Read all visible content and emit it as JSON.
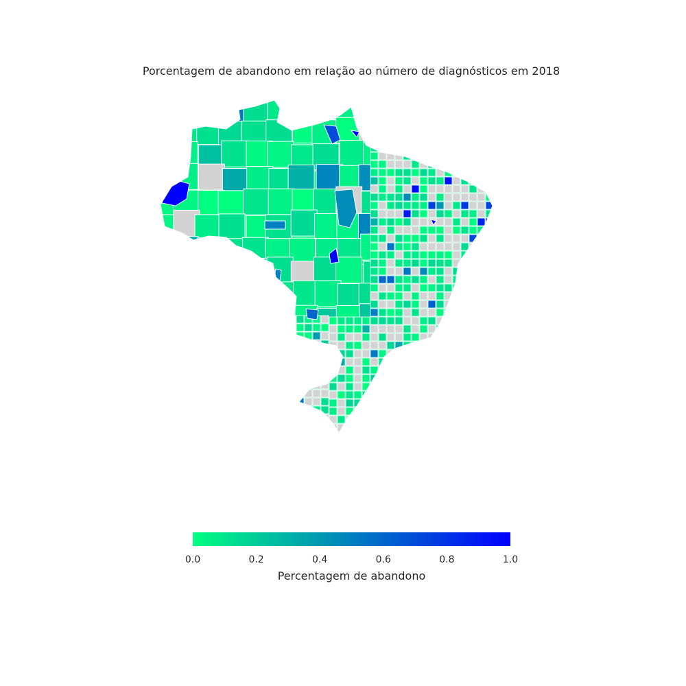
{
  "title": "Porcentagem de abandono em relação ao número de diagnósticos em 2018",
  "colorbar": {
    "label": "Percentagem de abandono",
    "ticks": [
      "0.0",
      "0.2",
      "0.4",
      "0.6",
      "0.8",
      "1.0"
    ],
    "min": 0.0,
    "max": 1.0,
    "colormap": "winter",
    "color_min": "#00ff80",
    "color_max": "#0000ff"
  },
  "map": {
    "region": "Brasil",
    "no_data_color": "#d3d3d3",
    "border_color": "#ffffff"
  }
}
